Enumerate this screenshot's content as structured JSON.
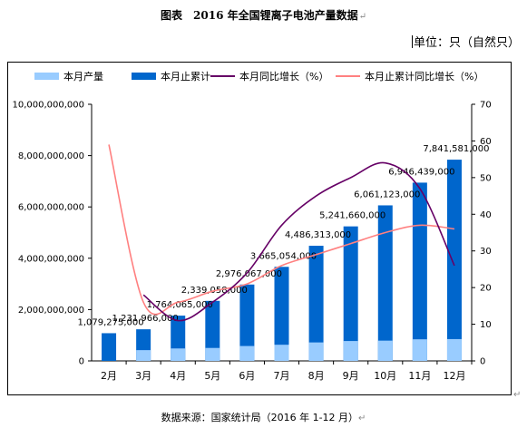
{
  "title": "图表　2016 年全国锂离子电池产量数据",
  "paragraph_mark": "↵",
  "unit": "单位：只（自然只）",
  "source": "数据来源：国家统计局（2016 年 1-12 月）",
  "colors": {
    "monthly": "#99CCFF",
    "cumulative": "#0066CC",
    "monthly_growth": "#660066",
    "cumulative_growth": "#FF8080"
  },
  "chart_data": {
    "type": "bar",
    "categories": [
      "2月",
      "3月",
      "4月",
      "5月",
      "6月",
      "7月",
      "8月",
      "9月",
      "10月",
      "11月",
      "12月"
    ],
    "series": [
      {
        "name": "本月产量",
        "kind": "bar",
        "axis": "left",
        "values": [
          null,
          420000000,
          485000000,
          505000000,
          580000000,
          630000000,
          720000000,
          775000000,
          790000000,
          842000000,
          850000000
        ]
      },
      {
        "name": "本月止累计",
        "kind": "bar",
        "axis": "left",
        "values": [
          1079275000,
          1231966000,
          1764065000,
          2339058000,
          2976067000,
          3665054000,
          4486313000,
          5241660000,
          6061123000,
          6946439000,
          7841581000
        ],
        "labels": [
          "1,079,275,000",
          "1,231,966,000",
          "1,764,065,000",
          "2,339,058,000",
          "2,976,067,000",
          "3,665,054,000",
          "4,486,313,000",
          "5,241,660,000",
          "6,061,123,000",
          "6,946,439,000",
          "7,841,581,000"
        ]
      },
      {
        "name": "本月同比增长（%）",
        "kind": "line",
        "axis": "right",
        "values": [
          null,
          18,
          11,
          16,
          24,
          37,
          45,
          50,
          54,
          47,
          26
        ]
      },
      {
        "name": "本月止累计同比增长（%）",
        "kind": "line",
        "axis": "right",
        "values": [
          59,
          16,
          16,
          19,
          21,
          26,
          29,
          32,
          35,
          37,
          36
        ]
      }
    ],
    "y_left": {
      "min": 0,
      "max": 10000000000,
      "step": 2000000000,
      "ticks": [
        "0",
        "2,000,000,000",
        "4,000,000,000",
        "6,000,000,000",
        "8,000,000,000",
        "10,000,000,000"
      ]
    },
    "y_right": {
      "min": 0,
      "max": 70,
      "step": 10,
      "ticks": [
        "0",
        "10",
        "20",
        "30",
        "40",
        "50",
        "60",
        "70"
      ]
    },
    "grid": false,
    "legend_position": "top"
  }
}
